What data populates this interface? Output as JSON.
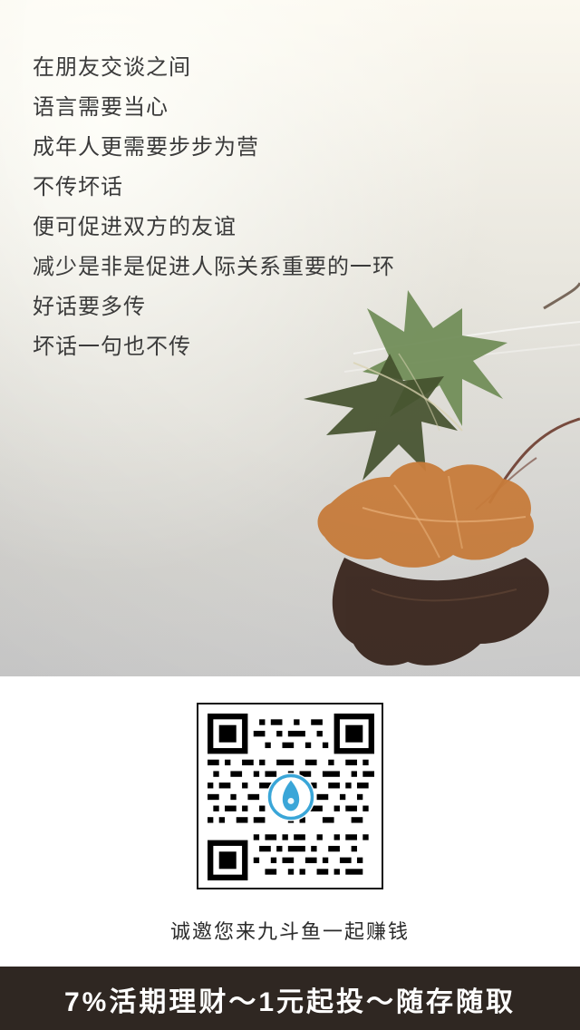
{
  "poem": {
    "lines": [
      "在朋友交谈之间",
      "语言需要当心",
      "成年人更需要步步为营",
      "不传坏话",
      "便可促进双方的友谊",
      "减少是非是促进人际关系重要的一环",
      "好话要多传",
      "坏话一句也不传"
    ]
  },
  "qr": {
    "logo_icon": "droplet-logo-icon",
    "colors": {
      "logo_ring": "#3aa6d8"
    }
  },
  "invite": {
    "text": "诚邀您来九斗鱼一起赚钱"
  },
  "footer": {
    "text": "7%活期理财～1元起投～随存随取"
  },
  "colors": {
    "footer_bg": "#2f2722",
    "text_dark": "#3b3b3b"
  }
}
